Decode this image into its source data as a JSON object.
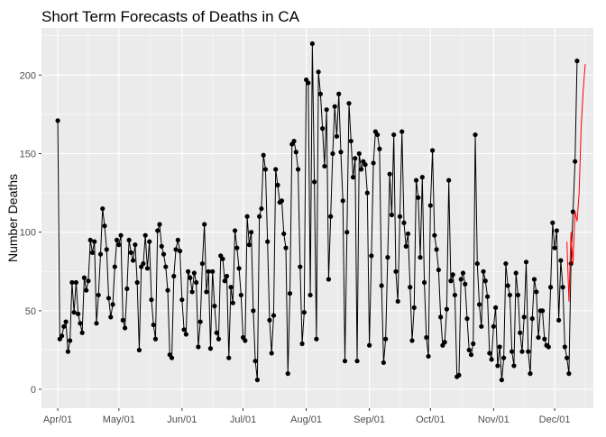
{
  "chart_data": {
    "type": "line",
    "title": "Short Term Forecasts of Deaths in CA",
    "xlabel": "",
    "ylabel": "Number Deaths",
    "ylim": [
      -12,
      230
    ],
    "yticks": [
      0,
      50,
      100,
      150,
      200
    ],
    "xlim": [
      "2020-03-24",
      "2020-12-20"
    ],
    "xticks": [
      {
        "date": "2020-04-01",
        "label": "Apr/01"
      },
      {
        "date": "2020-05-01",
        "label": "May/01"
      },
      {
        "date": "2020-06-01",
        "label": "Jun/01"
      },
      {
        "date": "2020-07-01",
        "label": "Jul/01"
      },
      {
        "date": "2020-08-01",
        "label": "Aug/01"
      },
      {
        "date": "2020-09-01",
        "label": "Sep/01"
      },
      {
        "date": "2020-10-01",
        "label": "Oct/01"
      },
      {
        "date": "2020-11-01",
        "label": "Nov/01"
      },
      {
        "date": "2020-12-01",
        "label": "Dec/01"
      }
    ],
    "grid": true,
    "series": [
      {
        "color": "#000000",
        "style": "line+points",
        "start_date": "2020-04-01",
        "values": [
          171,
          32,
          34,
          40,
          43,
          24,
          31,
          68,
          49,
          68,
          48,
          42,
          36,
          71,
          63,
          69,
          95,
          87,
          94,
          42,
          60,
          86,
          115,
          104,
          89,
          58,
          46,
          54,
          78,
          95,
          92,
          98,
          44,
          39,
          64,
          95,
          87,
          82,
          92,
          68,
          25,
          78,
          80,
          98,
          77,
          94,
          57,
          41,
          32,
          101,
          105,
          91,
          86,
          78,
          63,
          22,
          20,
          72,
          89,
          95,
          88,
          57,
          38,
          35,
          75,
          71,
          62,
          74,
          68,
          27,
          43,
          80,
          105,
          62,
          75,
          26,
          75,
          53,
          36,
          32,
          85,
          83,
          69,
          72,
          20,
          65,
          55,
          101,
          90,
          77,
          60,
          33,
          31,
          110,
          92,
          100,
          50,
          18,
          6,
          110,
          115,
          149,
          140,
          94,
          44,
          23,
          47,
          140,
          130,
          119,
          120,
          99,
          90,
          10,
          61,
          156,
          158,
          151,
          140,
          78,
          29,
          49,
          197,
          195,
          60,
          220,
          132,
          32,
          202,
          188,
          166,
          142,
          178,
          70,
          110,
          150,
          180,
          161,
          188,
          151,
          120,
          18,
          100,
          182,
          158,
          135,
          147,
          18,
          150,
          140,
          145,
          143,
          125,
          28,
          85,
          144,
          164,
          162,
          153,
          66,
          17,
          32,
          84,
          137,
          111,
          162,
          75,
          56,
          110,
          164,
          106,
          91,
          99,
          65,
          31,
          52,
          133,
          122,
          84,
          135,
          68,
          33,
          21,
          117,
          152,
          98,
          89,
          76,
          46,
          28,
          30,
          51,
          133,
          69,
          73,
          60,
          8,
          9,
          70,
          74,
          67,
          45,
          25,
          22,
          29,
          162,
          80,
          54,
          40,
          75,
          69,
          59,
          23,
          19,
          40,
          52,
          15,
          27,
          6,
          20,
          80,
          66,
          60,
          24,
          15,
          74,
          60,
          36,
          24,
          46,
          81,
          24,
          10,
          45,
          70,
          62,
          33,
          50,
          50,
          32,
          28,
          27,
          65,
          106,
          90,
          101,
          44,
          82,
          65,
          27,
          20,
          10,
          80,
          113,
          145,
          209
        ]
      },
      {
        "color": "#ff0000",
        "style": "line",
        "start_date": "2020-12-07",
        "values": [
          94,
          56,
          100,
          80,
          113,
          107,
          125,
          167,
          190,
          207
        ]
      }
    ]
  }
}
